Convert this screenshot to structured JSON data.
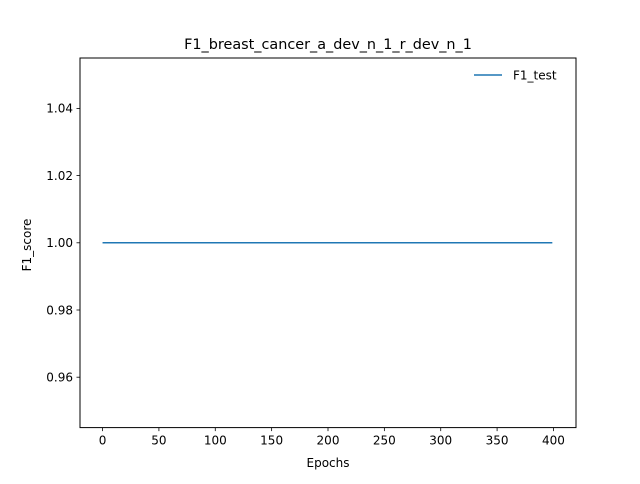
{
  "chart_data": {
    "type": "line",
    "title": "F1_breast_cancer_a_dev_n_1_r_dev_n_1",
    "xlabel": "Epochs",
    "ylabel": "F1_score",
    "xlim": [
      -20,
      420
    ],
    "ylim": [
      0.945,
      1.055
    ],
    "x_ticks": [
      0,
      50,
      100,
      150,
      200,
      250,
      300,
      350,
      400
    ],
    "y_ticks": [
      0.96,
      0.98,
      1.0,
      1.02,
      1.04
    ],
    "y_tick_labels": [
      "0.96",
      "0.98",
      "1.00",
      "1.02",
      "1.04"
    ],
    "grid": false,
    "legend_position": "top-right",
    "series": [
      {
        "name": "F1_test",
        "color": "#1f77b4",
        "x": [
          0,
          399
        ],
        "y": [
          1.0,
          1.0
        ]
      }
    ]
  }
}
